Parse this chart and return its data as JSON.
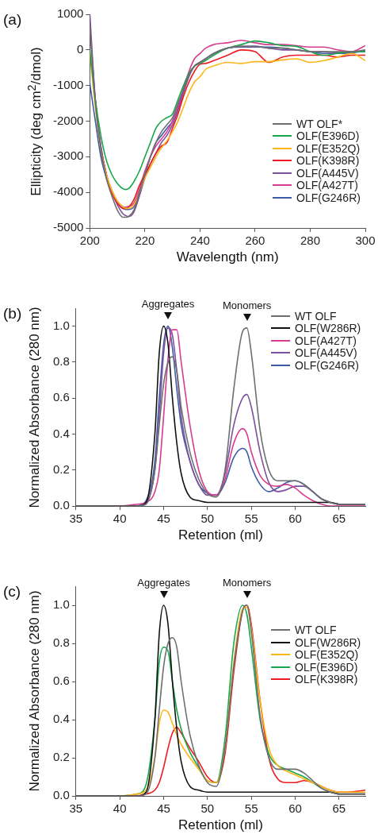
{
  "chart_data": [
    {
      "type": "line",
      "title": "(a)",
      "xlabel": "Wavelength (nm)",
      "ylabel": "Ellipticity (deg cm$^{2}$/dmol)",
      "xlim": [
        200,
        300
      ],
      "xticks": [
        200,
        220,
        240,
        260,
        280,
        300
      ],
      "ylim": [
        -5000,
        1000
      ],
      "yticks": [
        -5000,
        -4000,
        -3000,
        -2000,
        -1000,
        0,
        1000
      ],
      "legend": "bottom right",
      "grid": false,
      "marker": "none",
      "x": [
        200,
        202,
        204,
        206,
        208,
        210,
        212,
        213,
        214,
        216,
        218,
        220,
        222,
        224,
        226,
        228,
        230,
        232,
        234,
        236,
        238,
        240,
        242,
        245,
        250,
        255,
        260,
        265,
        270,
        275,
        280,
        285,
        290,
        295,
        300
      ],
      "series": [
        {
          "name": "WT OLF*",
          "color": "#6d6e70",
          "values": [
            700,
            -1500,
            -2800,
            -3600,
            -4100,
            -4500,
            -4700,
            -4700,
            -4680,
            -4500,
            -4000,
            -3500,
            -3000,
            -2600,
            -2300,
            -2100,
            -1900,
            -1500,
            -1100,
            -700,
            -450,
            -350,
            -250,
            -100,
            50,
            100,
            100,
            50,
            50,
            0,
            -50,
            -50,
            -50,
            -50,
            0
          ]
        },
        {
          "name": "OLF(E396D)",
          "color": "#1aa64a",
          "values": [
            0,
            -1400,
            -2400,
            -3100,
            -3500,
            -3750,
            -3900,
            -3920,
            -3900,
            -3700,
            -3400,
            -3000,
            -2600,
            -2200,
            -2000,
            -1900,
            -1800,
            -1400,
            -1000,
            -650,
            -450,
            -380,
            -300,
            -150,
            50,
            150,
            250,
            200,
            120,
            100,
            -50,
            -150,
            -100,
            -50,
            -50
          ]
        },
        {
          "name": "OLF(E352Q)",
          "color": "#fdb515",
          "values": [
            -100,
            -1600,
            -2800,
            -3500,
            -3950,
            -4250,
            -4400,
            -4450,
            -4450,
            -4350,
            -4000,
            -3600,
            -3300,
            -3000,
            -2750,
            -2550,
            -2300,
            -2000,
            -1600,
            -1200,
            -900,
            -750,
            -550,
            -450,
            -350,
            -380,
            -330,
            -330,
            -280,
            -250,
            -350,
            -300,
            -200,
            -100,
            -300
          ]
        },
        {
          "name": "OLF(K398R)",
          "color": "#ed1c24",
          "values": [
            null,
            null,
            -2800,
            -3500,
            -4000,
            -4300,
            -4450,
            -4450,
            -4420,
            -4200,
            -3800,
            -3500,
            -3200,
            -2900,
            -2700,
            -2600,
            -2200,
            -1800,
            -1300,
            -900,
            -600,
            -400,
            -380,
            -300,
            -150,
            0,
            -50,
            -350,
            -200,
            -150,
            -150,
            -150,
            -200,
            -150,
            -150
          ]
        },
        {
          "name": "OLF(A445V)",
          "color": "#7e4f9e",
          "values": [
            1000,
            -1400,
            -2700,
            -3500,
            -4000,
            -4350,
            -4600,
            -4650,
            -4680,
            -4550,
            -4100,
            -3600,
            -3200,
            -2900,
            -2600,
            -2400,
            -2100,
            -1700,
            -1200,
            -750,
            -450,
            -350,
            -250,
            -100,
            50,
            100,
            100,
            50,
            0,
            0,
            -50,
            -50,
            -80,
            -50,
            -50
          ]
        },
        {
          "name": "OLF(A427T)",
          "color": "#d63c8f",
          "values": [
            700,
            -1400,
            -2700,
            -3500,
            -3950,
            -4250,
            -4400,
            -4420,
            -4400,
            -4300,
            -3900,
            -3400,
            -3000,
            -2700,
            -2500,
            -2300,
            -2000,
            -1600,
            -1100,
            -600,
            -250,
            -100,
            50,
            150,
            200,
            270,
            200,
            150,
            150,
            120,
            80,
            80,
            0,
            -50,
            120
          ]
        },
        {
          "name": "OLF(G246R)",
          "color": "#3d5ba9",
          "values": [
            -950,
            -2000,
            -3000,
            -3600,
            -4000,
            -4300,
            -4450,
            -4480,
            -4480,
            -4400,
            -4000,
            -3500,
            -3000,
            -2600,
            -2400,
            -2200,
            -2000,
            -1600,
            -1100,
            -700,
            -450,
            -350,
            -250,
            -100,
            50,
            80,
            80,
            80,
            50,
            0,
            -50,
            -100,
            -100,
            -80,
            -30
          ]
        }
      ]
    },
    {
      "type": "line",
      "title": "(b)",
      "xlabel": "Retention (ml)",
      "ylabel": "Normalized Absorbance (280 nm)",
      "xlim": [
        35,
        68
      ],
      "xticks": [
        35,
        40,
        45,
        50,
        55,
        60,
        65
      ],
      "ylim": [
        0,
        1.1
      ],
      "yticks": [
        {
          "value": 0,
          "label": "0.0"
        },
        {
          "value": 0.2,
          "label": "0.2"
        },
        {
          "value": 0.4,
          "label": "0.4"
        },
        {
          "value": 0.6,
          "label": "0.6"
        },
        {
          "value": 0.8,
          "label": "0.8"
        },
        {
          "value": 1,
          "label": "1.0"
        }
      ],
      "legend": "top right",
      "grid": false,
      "marker": "none",
      "annotations": [
        {
          "text": "Aggregates",
          "x": 45.5,
          "y": 1
        },
        {
          "text": "Monomers",
          "x": 54.5,
          "y": 0.99
        }
      ],
      "x": [
        35,
        40,
        42,
        43,
        44,
        44.5,
        45,
        45.5,
        46,
        46.5,
        47,
        48,
        49,
        50,
        51,
        52,
        53,
        54,
        54.5,
        55,
        56,
        57,
        58,
        59,
        60,
        61,
        62,
        63,
        64,
        65,
        66,
        68
      ],
      "series": [
        {
          "name": "WT OLF",
          "color": "#6d6e70",
          "values": [
            0,
            0,
            0,
            0.01,
            0.2,
            0.45,
            0.68,
            0.8,
            0.83,
            0.75,
            0.55,
            0.3,
            0.15,
            0.07,
            0.05,
            0.2,
            0.65,
            0.97,
            0.99,
            0.85,
            0.42,
            0.2,
            0.14,
            0.14,
            0.14,
            0.12,
            0.08,
            0.04,
            0.02,
            0.01,
            0.01,
            0.01
          ]
        },
        {
          "name": "OLF(W286R)",
          "color": "#111111",
          "values": [
            0,
            0,
            0,
            0.02,
            0.4,
            0.85,
            1,
            0.9,
            0.6,
            0.35,
            0.18,
            0.05,
            0.03,
            0.02,
            0.02,
            0.02,
            0.02,
            0.02,
            0.02,
            0.02,
            0.02,
            0.02,
            0.02,
            0.02,
            0.02,
            0.02,
            0.02,
            0.02,
            0.02,
            0.01,
            0.01,
            0.01
          ]
        },
        {
          "name": "OLF(A427T)",
          "color": "#d63c8f",
          "values": [
            0,
            0,
            0.01,
            0.02,
            0.08,
            0.2,
            0.5,
            0.82,
            0.98,
            0.98,
            0.8,
            0.45,
            0.2,
            0.08,
            0.06,
            0.15,
            0.35,
            0.43,
            0.4,
            0.3,
            0.17,
            0.12,
            0.11,
            0.12,
            0.1,
            0.06,
            0.03,
            0.01,
            0,
            0,
            0,
            0
          ]
        },
        {
          "name": "OLF(A445V)",
          "color": "#7e4f9e",
          "values": [
            0,
            0,
            0,
            0.02,
            0.2,
            0.5,
            0.85,
            0.99,
            0.95,
            0.75,
            0.5,
            0.25,
            0.12,
            0.06,
            0.06,
            0.18,
            0.45,
            0.6,
            0.62,
            0.55,
            0.3,
            0.13,
            0.08,
            0.09,
            0.11,
            0.11,
            0.08,
            0.04,
            0.02,
            0.01,
            0.01,
            0.01
          ]
        },
        {
          "name": "OLF(G246R)",
          "color": "#3d5ba9",
          "values": [
            null,
            null,
            0,
            0.03,
            0.25,
            0.6,
            0.9,
            1,
            0.88,
            0.65,
            0.45,
            0.25,
            0.12,
            0.07,
            0.06,
            0.13,
            0.27,
            0.32,
            0.3,
            0.22,
            0.12,
            0.08,
            0.1,
            0.13,
            0.14,
            0.12,
            0.08,
            0.04,
            0.02,
            0.01,
            0.01,
            0.01
          ]
        }
      ]
    },
    {
      "type": "line",
      "title": "(c)",
      "xlabel": "Retention (ml)",
      "ylabel": "Normalized Absorbance (280 nm)",
      "xlim": [
        35,
        68
      ],
      "xticks": [
        35,
        40,
        45,
        50,
        55,
        60,
        65
      ],
      "ylim": [
        0,
        1.1
      ],
      "yticks": [
        {
          "value": 0,
          "label": "0.0"
        },
        {
          "value": 0.2,
          "label": "0.2"
        },
        {
          "value": 0.4,
          "label": "0.4"
        },
        {
          "value": 0.6,
          "label": "0.6"
        },
        {
          "value": 0.8,
          "label": "0.8"
        },
        {
          "value": 1,
          "label": "1.0"
        }
      ],
      "legend": "right",
      "grid": false,
      "marker": "none",
      "annotations": [
        {
          "text": "Aggregates",
          "x": 45,
          "y": 1
        },
        {
          "text": "Monomers",
          "x": 54.5,
          "y": 1
        }
      ],
      "x": [
        35,
        40,
        42,
        43,
        44,
        44.5,
        45,
        45.5,
        46,
        46.5,
        47,
        48,
        49,
        50,
        51,
        52,
        53,
        54,
        54.5,
        55,
        56,
        57,
        58,
        59,
        60,
        61,
        62,
        63,
        64,
        65,
        66,
        68
      ],
      "series": [
        {
          "name": "WT OLF",
          "color": "#6d6e70",
          "values": [
            0,
            0,
            0,
            0.01,
            0.2,
            0.45,
            0.68,
            0.8,
            0.83,
            0.78,
            0.6,
            0.32,
            0.16,
            0.07,
            0.05,
            0.25,
            0.68,
            0.97,
            1,
            0.86,
            0.42,
            0.2,
            0.14,
            0.14,
            0.14,
            0.12,
            0.08,
            0.04,
            0.02,
            0.01,
            0.01,
            0.01
          ]
        },
        {
          "name": "OLF(W286R)",
          "color": "#111111",
          "values": [
            0,
            0,
            0,
            0.02,
            0.4,
            0.85,
            1,
            0.9,
            0.6,
            0.35,
            0.18,
            0.05,
            0.03,
            0.02,
            0.02,
            0.02,
            0.02,
            0.02,
            0.02,
            0.02,
            0.02,
            0.02,
            0.02,
            0.02,
            0.02,
            0.02,
            0.02,
            0.02,
            0.02,
            0.01,
            0.01,
            0.01
          ]
        },
        {
          "name": "OLF(E352Q)",
          "color": "#fdb515",
          "values": [
            0,
            0,
            0.01,
            0.03,
            0.2,
            0.38,
            0.45,
            0.44,
            0.38,
            0.32,
            0.27,
            0.2,
            0.14,
            0.08,
            0.07,
            0.25,
            0.7,
            0.98,
            0.99,
            0.88,
            0.5,
            0.25,
            0.16,
            0.13,
            0.11,
            0.09,
            0.07,
            0.05,
            0.03,
            0.02,
            0.02,
            0.02
          ]
        },
        {
          "name": "OLF(E396D)",
          "color": "#1aa64a",
          "values": [
            0,
            0,
            0.01,
            0.06,
            0.4,
            0.7,
            0.78,
            0.76,
            0.6,
            0.45,
            0.35,
            0.23,
            0.15,
            0.08,
            0.07,
            0.3,
            0.8,
            1,
            0.95,
            0.78,
            0.4,
            0.22,
            0.16,
            0.14,
            0.12,
            0.1,
            0.07,
            0.04,
            0.02,
            0.01,
            null,
            null
          ]
        },
        {
          "name": "OLF(K398R)",
          "color": "#ed1c24",
          "values": [
            null,
            null,
            0,
            0.01,
            0.03,
            0.07,
            0.15,
            0.25,
            0.33,
            0.36,
            0.33,
            0.25,
            0.18,
            0.1,
            0.07,
            0.22,
            0.65,
            0.97,
            1,
            0.9,
            0.5,
            0.2,
            0.09,
            0.07,
            0.07,
            0.08,
            0.07,
            0.05,
            0.03,
            0.02,
            0.02,
            0.03
          ]
        }
      ]
    }
  ]
}
